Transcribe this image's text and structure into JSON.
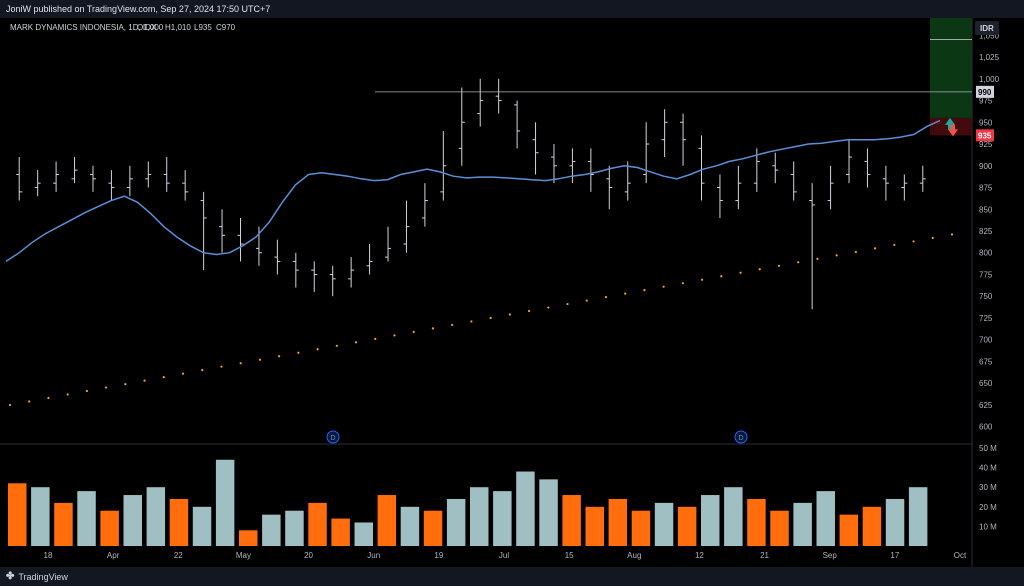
{
  "header": {
    "publish_line": "JoniW published on TradingView.com, Sep 27, 2024 17:50 UTC+7"
  },
  "footer": {
    "brand": "TradingView",
    "logo_icon": "tradingview-logo-icon"
  },
  "chart_data": {
    "type": "ohlc",
    "title": "MARK DYNAMICS INDONESIA, 1D, IDX",
    "ohlc_legend": {
      "open": "O1,000",
      "high": "H1,010",
      "low": "L935",
      "close": "C970"
    },
    "currency": "IDR",
    "y_ticks": [
      1050,
      1025,
      1000,
      975,
      950,
      925,
      900,
      875,
      850,
      825,
      800,
      775,
      750,
      725,
      700,
      675,
      650,
      625,
      600
    ],
    "ylim": [
      587,
      1063
    ],
    "x_ticks": [
      "18",
      "Apr",
      "22",
      "May",
      "20",
      "Jun",
      "19",
      "Jul",
      "15",
      "Aug",
      "12",
      "21",
      "Sep",
      "17",
      "Oct"
    ],
    "volume_ticks": [
      "50 M",
      "40 M",
      "30 M",
      "20 M",
      "10 M"
    ],
    "volume_max": 50,
    "price_labels": {
      "resistance": "990",
      "stop": "935"
    },
    "resistance_level": 985,
    "position_tool": {
      "entry": 955,
      "target": 1045,
      "stop": 935
    },
    "dividend_markers": [
      "D",
      "D"
    ],
    "colors": {
      "bars": "#d1d4dc",
      "ma": "#5b8fd9",
      "ma200": "#f5a623",
      "vol_up": "#9fbfc2",
      "vol_down": "#ff6d0c",
      "profit": "#0c3d16",
      "loss": "#4a0b10"
    },
    "series": [
      {
        "name": "MA20",
        "values": [
          790,
          800,
          812,
          822,
          830,
          838,
          846,
          853,
          860,
          865,
          858,
          845,
          830,
          818,
          808,
          800,
          798,
          800,
          808,
          818,
          835,
          858,
          878,
          890,
          892,
          890,
          888,
          885,
          883,
          884,
          890,
          893,
          896,
          893,
          888,
          886,
          887,
          887,
          886,
          885,
          884,
          883,
          885,
          888,
          890,
          893,
          897,
          900,
          898,
          893,
          888,
          885,
          890,
          896,
          900,
          905,
          908,
          912,
          916,
          919,
          922,
          925,
          926,
          928,
          930,
          930,
          930,
          931,
          933,
          936,
          945,
          952
        ]
      },
      {
        "name": "MA200",
        "values": [
          625,
          629,
          633,
          637,
          641,
          645,
          649,
          653,
          657,
          661,
          665,
          669,
          673,
          677,
          681,
          685,
          689,
          693,
          697,
          701,
          705,
          709,
          713,
          717,
          721,
          725,
          729,
          733,
          737,
          741,
          745,
          749,
          753,
          757,
          761,
          765,
          769,
          773,
          777,
          781,
          785,
          789,
          793,
          797,
          801,
          805,
          809,
          813,
          817,
          821
        ]
      }
    ],
    "candles": [
      [
        890,
        870,
        910,
        860
      ],
      [
        875,
        880,
        895,
        865
      ],
      [
        880,
        890,
        905,
        870
      ],
      [
        885,
        895,
        910,
        880
      ],
      [
        890,
        885,
        900,
        870
      ],
      [
        880,
        875,
        895,
        860
      ],
      [
        875,
        885,
        900,
        865
      ],
      [
        885,
        890,
        905,
        875
      ],
      [
        890,
        880,
        910,
        870
      ],
      [
        880,
        870,
        895,
        860
      ],
      [
        860,
        840,
        870,
        780
      ],
      [
        830,
        820,
        850,
        800
      ],
      [
        820,
        810,
        840,
        790
      ],
      [
        805,
        800,
        830,
        785
      ],
      [
        795,
        790,
        815,
        775
      ],
      [
        790,
        780,
        800,
        760
      ],
      [
        780,
        775,
        790,
        755
      ],
      [
        775,
        770,
        785,
        750
      ],
      [
        770,
        780,
        795,
        760
      ],
      [
        785,
        790,
        810,
        775
      ],
      [
        795,
        805,
        830,
        790
      ],
      [
        810,
        830,
        860,
        800
      ],
      [
        840,
        860,
        880,
        830
      ],
      [
        870,
        900,
        940,
        860
      ],
      [
        920,
        950,
        990,
        900
      ],
      [
        960,
        975,
        1000,
        945
      ],
      [
        980,
        975,
        1000,
        960
      ],
      [
        970,
        940,
        975,
        920
      ],
      [
        930,
        915,
        950,
        890
      ],
      [
        910,
        900,
        925,
        880
      ],
      [
        900,
        905,
        920,
        880
      ],
      [
        905,
        890,
        920,
        870
      ],
      [
        885,
        875,
        900,
        850
      ],
      [
        870,
        880,
        905,
        860
      ],
      [
        890,
        925,
        950,
        880
      ],
      [
        930,
        950,
        965,
        910
      ],
      [
        950,
        930,
        960,
        900
      ],
      [
        920,
        880,
        935,
        860
      ],
      [
        875,
        860,
        890,
        840
      ],
      [
        860,
        880,
        900,
        850
      ],
      [
        880,
        905,
        920,
        870
      ],
      [
        900,
        895,
        915,
        880
      ],
      [
        890,
        870,
        905,
        860
      ],
      [
        860,
        855,
        880,
        735
      ],
      [
        860,
        880,
        900,
        850
      ],
      [
        890,
        910,
        930,
        880
      ],
      [
        905,
        890,
        920,
        875
      ],
      [
        885,
        880,
        900,
        860
      ],
      [
        875,
        880,
        890,
        860
      ],
      [
        880,
        885,
        900,
        870
      ]
    ],
    "volume": [
      [
        32,
        "down"
      ],
      [
        30,
        "up"
      ],
      [
        22,
        "down"
      ],
      [
        28,
        "up"
      ],
      [
        18,
        "down"
      ],
      [
        26,
        "up"
      ],
      [
        30,
        "up"
      ],
      [
        24,
        "down"
      ],
      [
        20,
        "up"
      ],
      [
        44,
        "up"
      ],
      [
        8,
        "down"
      ],
      [
        16,
        "up"
      ],
      [
        18,
        "up"
      ],
      [
        22,
        "down"
      ],
      [
        14,
        "down"
      ],
      [
        12,
        "up"
      ],
      [
        26,
        "down"
      ],
      [
        20,
        "up"
      ],
      [
        18,
        "down"
      ],
      [
        24,
        "up"
      ],
      [
        30,
        "up"
      ],
      [
        28,
        "up"
      ],
      [
        38,
        "up"
      ],
      [
        34,
        "up"
      ],
      [
        26,
        "down"
      ],
      [
        20,
        "down"
      ],
      [
        24,
        "down"
      ],
      [
        18,
        "down"
      ],
      [
        22,
        "up"
      ],
      [
        20,
        "down"
      ],
      [
        26,
        "up"
      ],
      [
        30,
        "up"
      ],
      [
        24,
        "down"
      ],
      [
        18,
        "down"
      ],
      [
        22,
        "up"
      ],
      [
        28,
        "up"
      ],
      [
        16,
        "down"
      ],
      [
        20,
        "down"
      ],
      [
        24,
        "up"
      ],
      [
        30,
        "up"
      ]
    ]
  }
}
